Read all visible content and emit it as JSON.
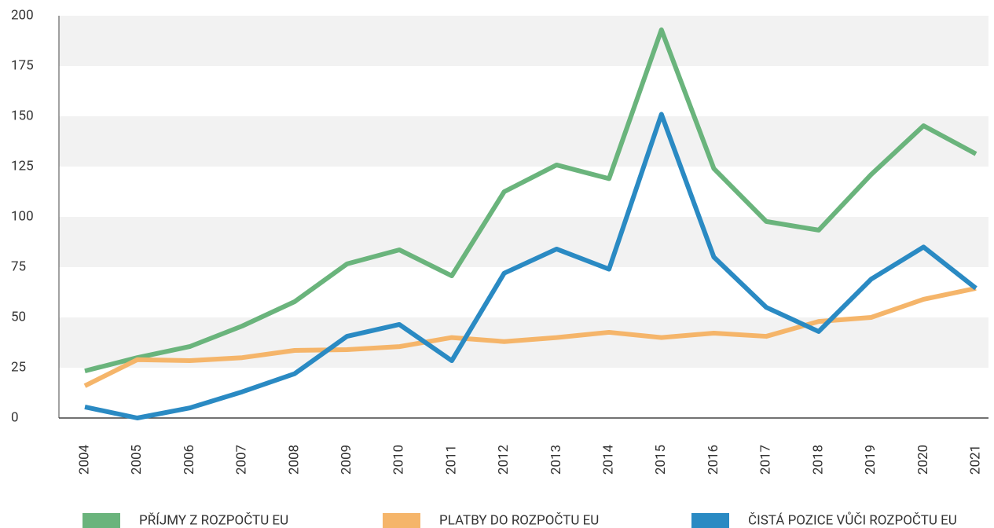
{
  "chart_data": {
    "type": "line",
    "categories": [
      "2004",
      "2005",
      "2006",
      "2007",
      "2008",
      "2009",
      "2010",
      "2011",
      "2012",
      "2013",
      "2014",
      "2015",
      "2016",
      "2017",
      "2018",
      "2019",
      "2020",
      "2021"
    ],
    "series": [
      {
        "name": "PŘÍJMY Z ROZPOČTU EU",
        "color": "#6ab47c",
        "values": [
          23.4,
          30,
          35.5,
          45.7,
          57.8,
          76.6,
          83.6,
          70.7,
          112.5,
          125.8,
          119,
          193,
          124,
          97.7,
          93.4,
          121,
          145.3,
          131.3
        ]
      },
      {
        "name": "PLATBY DO ROZPOČTU EU",
        "color": "#f5b56a",
        "values": [
          16,
          29,
          28.5,
          30,
          33.6,
          34,
          35.5,
          40,
          38,
          40,
          42.6,
          40,
          42.2,
          40.6,
          48,
          50,
          59,
          64.5
        ]
      },
      {
        "name": "ČISTÁ POZICE VŮČI ROZPOČTU EU",
        "color": "#2a8ac3",
        "values": [
          5.5,
          0,
          5,
          13,
          22,
          40.6,
          46.5,
          28.5,
          72,
          84,
          74,
          151,
          80,
          55,
          43,
          69,
          85,
          64.5
        ]
      }
    ],
    "ylim": [
      0,
      200
    ],
    "yticks": [
      0,
      25,
      50,
      75,
      100,
      125,
      150,
      175,
      200
    ],
    "grid": true,
    "legend": "bottom"
  }
}
